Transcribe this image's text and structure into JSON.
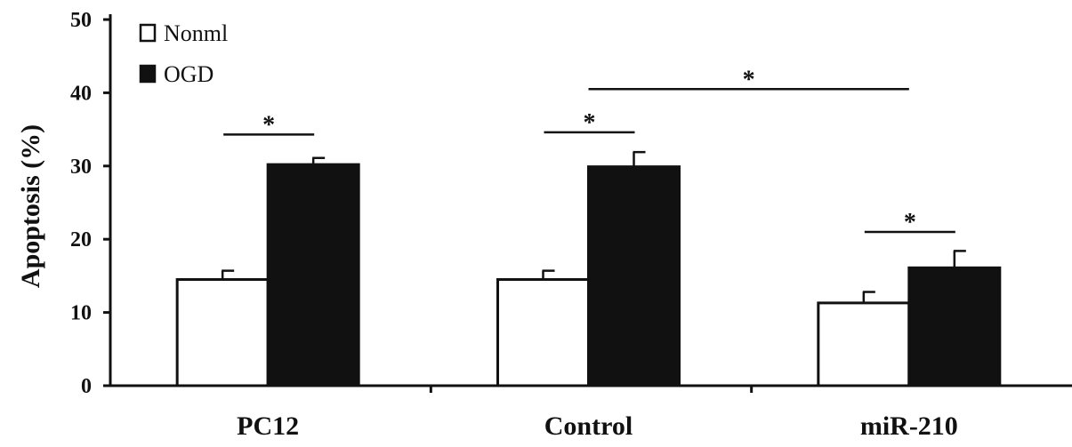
{
  "chart_data": {
    "type": "bar",
    "title": "",
    "xlabel": "",
    "ylabel": "Apoptosis (%)",
    "ylim": [
      0,
      50
    ],
    "yticks": [
      "0",
      "10",
      "20",
      "30",
      "40",
      "50"
    ],
    "categories": [
      "PC12",
      "Control",
      "miR-210"
    ],
    "series": [
      {
        "name": "Nonml",
        "values": [
          14.5,
          14.5,
          11.3
        ],
        "errors": [
          1.2,
          1.2,
          1.5
        ],
        "color": "#ffffff"
      },
      {
        "name": "OGD",
        "values": [
          30.2,
          29.9,
          16.1
        ],
        "errors": [
          0.9,
          2.0,
          2.3
        ],
        "color": "#111111"
      }
    ],
    "legend_position": "top-left",
    "significance": [
      {
        "label": "*",
        "from": "PC12",
        "to": "PC12",
        "y": 34.3
      },
      {
        "label": "*",
        "from": "Control",
        "to": "Control",
        "y": 34.6
      },
      {
        "label": "*",
        "from": "Control",
        "to": "miR-210",
        "y": 40.5
      },
      {
        "label": "*",
        "from": "miR-210",
        "to": "miR-210",
        "y": 21.0
      }
    ]
  }
}
